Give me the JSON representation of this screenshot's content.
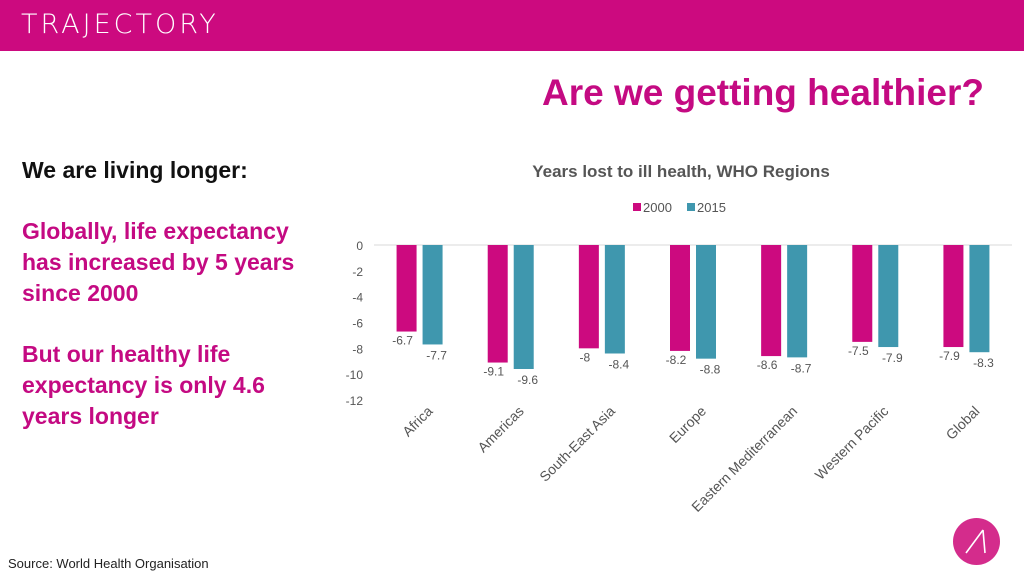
{
  "header": {
    "brand": "TRAJECTORY",
    "color": "#cc0a7f"
  },
  "slide": {
    "title": "Are we getting healthier?",
    "lead": "We are living longer:",
    "points": [
      "Globally, life expectancy has increased by 5 years since 2000",
      "But our healthy life expectancy is only 4.6 years longer"
    ],
    "source": "Source: World Health Organisation",
    "logo_icon": "trajectory-mark-icon"
  },
  "chart_data": {
    "type": "bar",
    "title": "Years lost to ill health, WHO Regions",
    "xlabel": "",
    "ylabel": "",
    "categories": [
      "Africa",
      "Americas",
      "South-East Asia",
      "Europe",
      "Eastern Mediterranean",
      "Western Pacific",
      "Global"
    ],
    "series": [
      {
        "name": "2000",
        "color": "#cc0a7f",
        "values": [
          -6.7,
          -9.1,
          -8,
          -8.2,
          -8.6,
          -7.5,
          -7.9
        ]
      },
      {
        "name": "2015",
        "color": "#3f97ae",
        "values": [
          -7.7,
          -9.6,
          -8.4,
          -8.8,
          -8.7,
          -7.9,
          -8.3
        ]
      }
    ],
    "ylim": [
      -12,
      0
    ],
    "yticks": [
      0,
      -2,
      -4,
      -6,
      -8,
      -10,
      -12
    ],
    "grid": false,
    "legend": "top-center",
    "data_labels": true
  }
}
